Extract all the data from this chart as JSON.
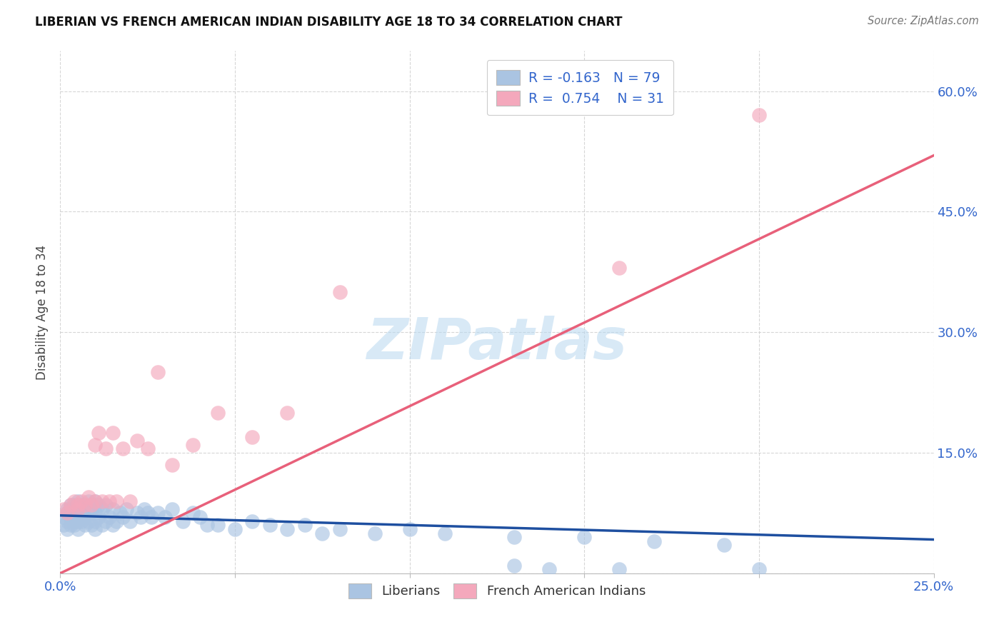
{
  "title": "LIBERIAN VS FRENCH AMERICAN INDIAN DISABILITY AGE 18 TO 34 CORRELATION CHART",
  "source": "Source: ZipAtlas.com",
  "ylabel": "Disability Age 18 to 34",
  "xlim": [
    0.0,
    0.25
  ],
  "ylim": [
    0.0,
    0.65
  ],
  "xtick_positions": [
    0.0,
    0.05,
    0.1,
    0.15,
    0.2,
    0.25
  ],
  "xticklabels": [
    "0.0%",
    "",
    "",
    "",
    "",
    "25.0%"
  ],
  "ytick_positions": [
    0.0,
    0.15,
    0.3,
    0.45,
    0.6
  ],
  "yticklabels_right": [
    "",
    "15.0%",
    "30.0%",
    "45.0%",
    "60.0%"
  ],
  "liberian_R": -0.163,
  "liberian_N": 79,
  "french_R": 0.754,
  "french_N": 31,
  "liberian_color": "#aac4e2",
  "french_color": "#f4a8bc",
  "liberian_line_color": "#1e4fa0",
  "french_line_color": "#e8607a",
  "watermark": "ZIPatlas",
  "lib_line_x0": 0.0,
  "lib_line_x1": 0.25,
  "lib_line_y0": 0.072,
  "lib_line_y1": 0.042,
  "fr_line_x0": 0.0,
  "fr_line_x1": 0.25,
  "fr_line_y0": 0.0,
  "fr_line_y1": 0.52,
  "liberian_x": [
    0.001,
    0.001,
    0.002,
    0.002,
    0.002,
    0.002,
    0.003,
    0.003,
    0.003,
    0.003,
    0.004,
    0.004,
    0.004,
    0.004,
    0.005,
    0.005,
    0.005,
    0.005,
    0.005,
    0.006,
    0.006,
    0.006,
    0.007,
    0.007,
    0.007,
    0.008,
    0.008,
    0.008,
    0.009,
    0.009,
    0.01,
    0.01,
    0.01,
    0.01,
    0.011,
    0.011,
    0.012,
    0.012,
    0.013,
    0.013,
    0.014,
    0.015,
    0.015,
    0.016,
    0.017,
    0.018,
    0.019,
    0.02,
    0.022,
    0.023,
    0.024,
    0.025,
    0.026,
    0.028,
    0.03,
    0.032,
    0.035,
    0.038,
    0.04,
    0.042,
    0.045,
    0.05,
    0.055,
    0.06,
    0.065,
    0.07,
    0.075,
    0.08,
    0.09,
    0.1,
    0.11,
    0.13,
    0.15,
    0.17,
    0.19,
    0.13,
    0.14,
    0.16,
    0.2
  ],
  "liberian_y": [
    0.06,
    0.07,
    0.055,
    0.065,
    0.075,
    0.08,
    0.06,
    0.07,
    0.08,
    0.085,
    0.06,
    0.065,
    0.075,
    0.085,
    0.055,
    0.065,
    0.07,
    0.08,
    0.09,
    0.065,
    0.075,
    0.085,
    0.06,
    0.07,
    0.085,
    0.065,
    0.075,
    0.09,
    0.06,
    0.08,
    0.055,
    0.065,
    0.075,
    0.09,
    0.07,
    0.085,
    0.06,
    0.08,
    0.065,
    0.085,
    0.07,
    0.06,
    0.08,
    0.065,
    0.075,
    0.07,
    0.08,
    0.065,
    0.075,
    0.07,
    0.08,
    0.075,
    0.07,
    0.075,
    0.07,
    0.08,
    0.065,
    0.075,
    0.07,
    0.06,
    0.06,
    0.055,
    0.065,
    0.06,
    0.055,
    0.06,
    0.05,
    0.055,
    0.05,
    0.055,
    0.05,
    0.045,
    0.045,
    0.04,
    0.035,
    0.01,
    0.005,
    0.005,
    0.005
  ],
  "french_x": [
    0.001,
    0.002,
    0.003,
    0.004,
    0.005,
    0.005,
    0.006,
    0.007,
    0.008,
    0.009,
    0.01,
    0.01,
    0.011,
    0.012,
    0.013,
    0.014,
    0.015,
    0.016,
    0.018,
    0.02,
    0.022,
    0.025,
    0.028,
    0.032,
    0.038,
    0.045,
    0.055,
    0.065,
    0.08,
    0.16,
    0.2
  ],
  "french_y": [
    0.08,
    0.075,
    0.085,
    0.09,
    0.08,
    0.085,
    0.09,
    0.085,
    0.095,
    0.085,
    0.16,
    0.09,
    0.175,
    0.09,
    0.155,
    0.09,
    0.175,
    0.09,
    0.155,
    0.09,
    0.165,
    0.155,
    0.25,
    0.135,
    0.16,
    0.2,
    0.17,
    0.2,
    0.35,
    0.38,
    0.57
  ]
}
